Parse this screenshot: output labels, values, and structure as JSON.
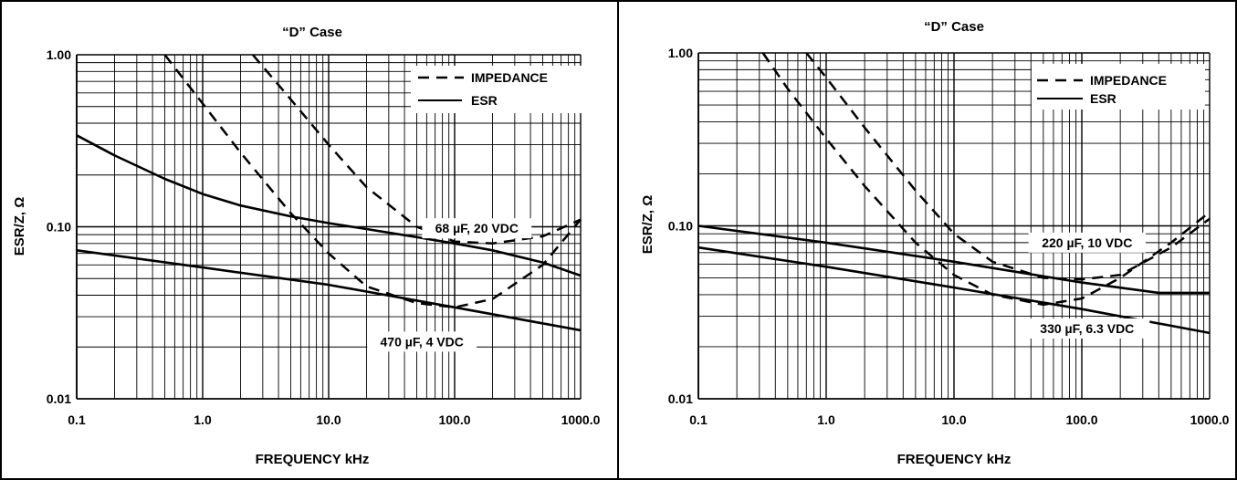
{
  "chart_data": [
    {
      "type": "line",
      "title": "“D” Case",
      "xlabel": "FREQUENCY kHz",
      "ylabel": "ESR/Z, Ω",
      "xscale": "log",
      "yscale": "log",
      "xlim": [
        0.1,
        1000
      ],
      "ylim": [
        0.01,
        1
      ],
      "grid": true,
      "legend_position": "top-right",
      "x_ticks": [
        "0.1",
        "1.0",
        "10.0",
        "100.0",
        "1000.0"
      ],
      "y_ticks": [
        "0.01",
        "0.10",
        "1.00"
      ],
      "legend": [
        {
          "label": "IMPEDANCE",
          "style": "dashed"
        },
        {
          "label": "ESR",
          "style": "solid"
        }
      ],
      "annotations": [
        {
          "text": "68 µF, 20 VDC",
          "x": 150,
          "y": 0.098
        },
        {
          "text": "470 µF, 4 VDC",
          "x": 55,
          "y": 0.0215
        }
      ],
      "series": [
        {
          "part": "68 µF, 20 VDC",
          "kind": "IMPEDANCE",
          "style": "dashed",
          "x": [
            2.5,
            5,
            10,
            20,
            50,
            100,
            200,
            500,
            1000
          ],
          "y": [
            1.0,
            0.55,
            0.3,
            0.17,
            0.1,
            0.082,
            0.08,
            0.088,
            0.11
          ]
        },
        {
          "part": "68 µF, 20 VDC",
          "kind": "ESR",
          "style": "solid",
          "x": [
            0.1,
            0.2,
            0.5,
            1,
            2,
            5,
            10,
            20,
            50,
            100,
            200,
            500,
            1000
          ],
          "y": [
            0.34,
            0.26,
            0.19,
            0.155,
            0.133,
            0.115,
            0.105,
            0.097,
            0.087,
            0.08,
            0.073,
            0.062,
            0.052
          ]
        },
        {
          "part": "470 µF, 4 VDC",
          "kind": "IMPEDANCE",
          "style": "dashed",
          "x": [
            0.5,
            1,
            2,
            5,
            10,
            20,
            50,
            100,
            200,
            500,
            1000
          ],
          "y": [
            1.0,
            0.52,
            0.27,
            0.12,
            0.07,
            0.045,
            0.036,
            0.034,
            0.038,
            0.06,
            0.11
          ]
        },
        {
          "part": "470 µF, 4 VDC",
          "kind": "ESR",
          "style": "solid",
          "x": [
            0.1,
            1,
            10,
            100,
            1000
          ],
          "y": [
            0.073,
            0.058,
            0.046,
            0.034,
            0.025
          ]
        }
      ]
    },
    {
      "type": "line",
      "title": "“D” Case",
      "xlabel": "FREQUENCY kHz",
      "ylabel": "ESR/Z, Ω",
      "xscale": "log",
      "yscale": "log",
      "xlim": [
        0.1,
        1000
      ],
      "ylim": [
        0.01,
        1
      ],
      "grid": true,
      "legend_position": "top-right",
      "x_ticks": [
        "0.1",
        "1.0",
        "10.0",
        "100.0",
        "1000.0"
      ],
      "y_ticks": [
        "0.01",
        "0.10",
        "1.00"
      ],
      "legend": [
        {
          "label": "IMPEDANCE",
          "style": "dashed"
        },
        {
          "label": "ESR",
          "style": "solid"
        }
      ],
      "annotations": [
        {
          "text": "220 µF, 10 VDC",
          "x": 110,
          "y": 0.08
        },
        {
          "text": "330 µF, 6.3 VDC",
          "x": 110,
          "y": 0.0255
        }
      ],
      "series": [
        {
          "part": "220 µF, 10 VDC",
          "kind": "IMPEDANCE",
          "style": "dashed",
          "x": [
            0.7,
            1,
            2,
            5,
            10,
            20,
            50,
            100,
            200,
            500,
            1000
          ],
          "y": [
            1.0,
            0.72,
            0.37,
            0.16,
            0.09,
            0.062,
            0.05,
            0.049,
            0.052,
            0.075,
            0.11
          ]
        },
        {
          "part": "220 µF, 10 VDC",
          "kind": "ESR",
          "style": "solid",
          "x": [
            0.1,
            1,
            10,
            100,
            400,
            1000
          ],
          "y": [
            0.1,
            0.08,
            0.062,
            0.047,
            0.041,
            0.041
          ]
        },
        {
          "part": "330 µF, 6.3 VDC",
          "kind": "IMPEDANCE",
          "style": "dashed",
          "x": [
            0.32,
            0.5,
            1,
            2,
            5,
            10,
            20,
            50,
            100,
            200,
            500,
            1000
          ],
          "y": [
            1.0,
            0.62,
            0.32,
            0.17,
            0.08,
            0.052,
            0.04,
            0.035,
            0.038,
            0.05,
            0.08,
            0.12
          ]
        },
        {
          "part": "330 µF, 6.3 VDC",
          "kind": "ESR",
          "style": "solid",
          "x": [
            0.1,
            1,
            10,
            100,
            1000
          ],
          "y": [
            0.075,
            0.058,
            0.044,
            0.033,
            0.024
          ]
        }
      ]
    }
  ]
}
